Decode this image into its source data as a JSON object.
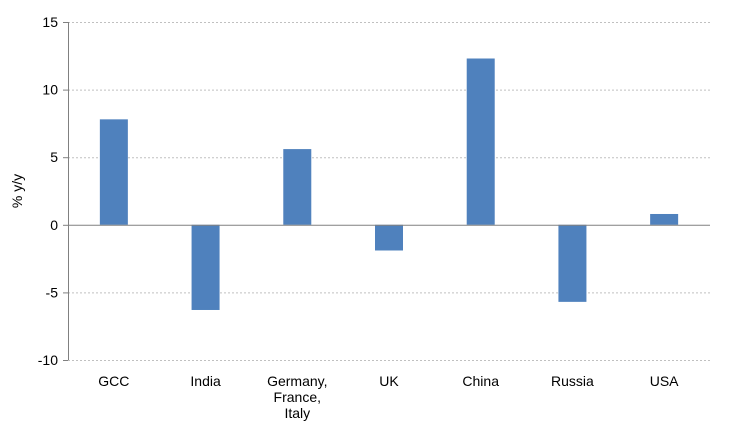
{
  "chart_data": {
    "type": "bar",
    "title": "",
    "xlabel": "",
    "ylabel": "% y/y",
    "categories": [
      [
        "GCC"
      ],
      [
        "India"
      ],
      [
        "Germany,",
        "France,",
        "Italy"
      ],
      [
        "UK"
      ],
      [
        "China"
      ],
      [
        "Russia"
      ],
      [
        "USA"
      ]
    ],
    "values": [
      7.8,
      -6.3,
      5.6,
      -1.9,
      12.3,
      -5.7,
      0.8
    ],
    "ylim": [
      -10,
      15
    ],
    "yticks": [
      -10,
      -5,
      0,
      5,
      10,
      15
    ],
    "grid": "horizontal-dotted",
    "legend": "none",
    "colors": {
      "bar": "#4F81BD",
      "axis": "#808080",
      "grid": "#C0C0C0"
    }
  }
}
